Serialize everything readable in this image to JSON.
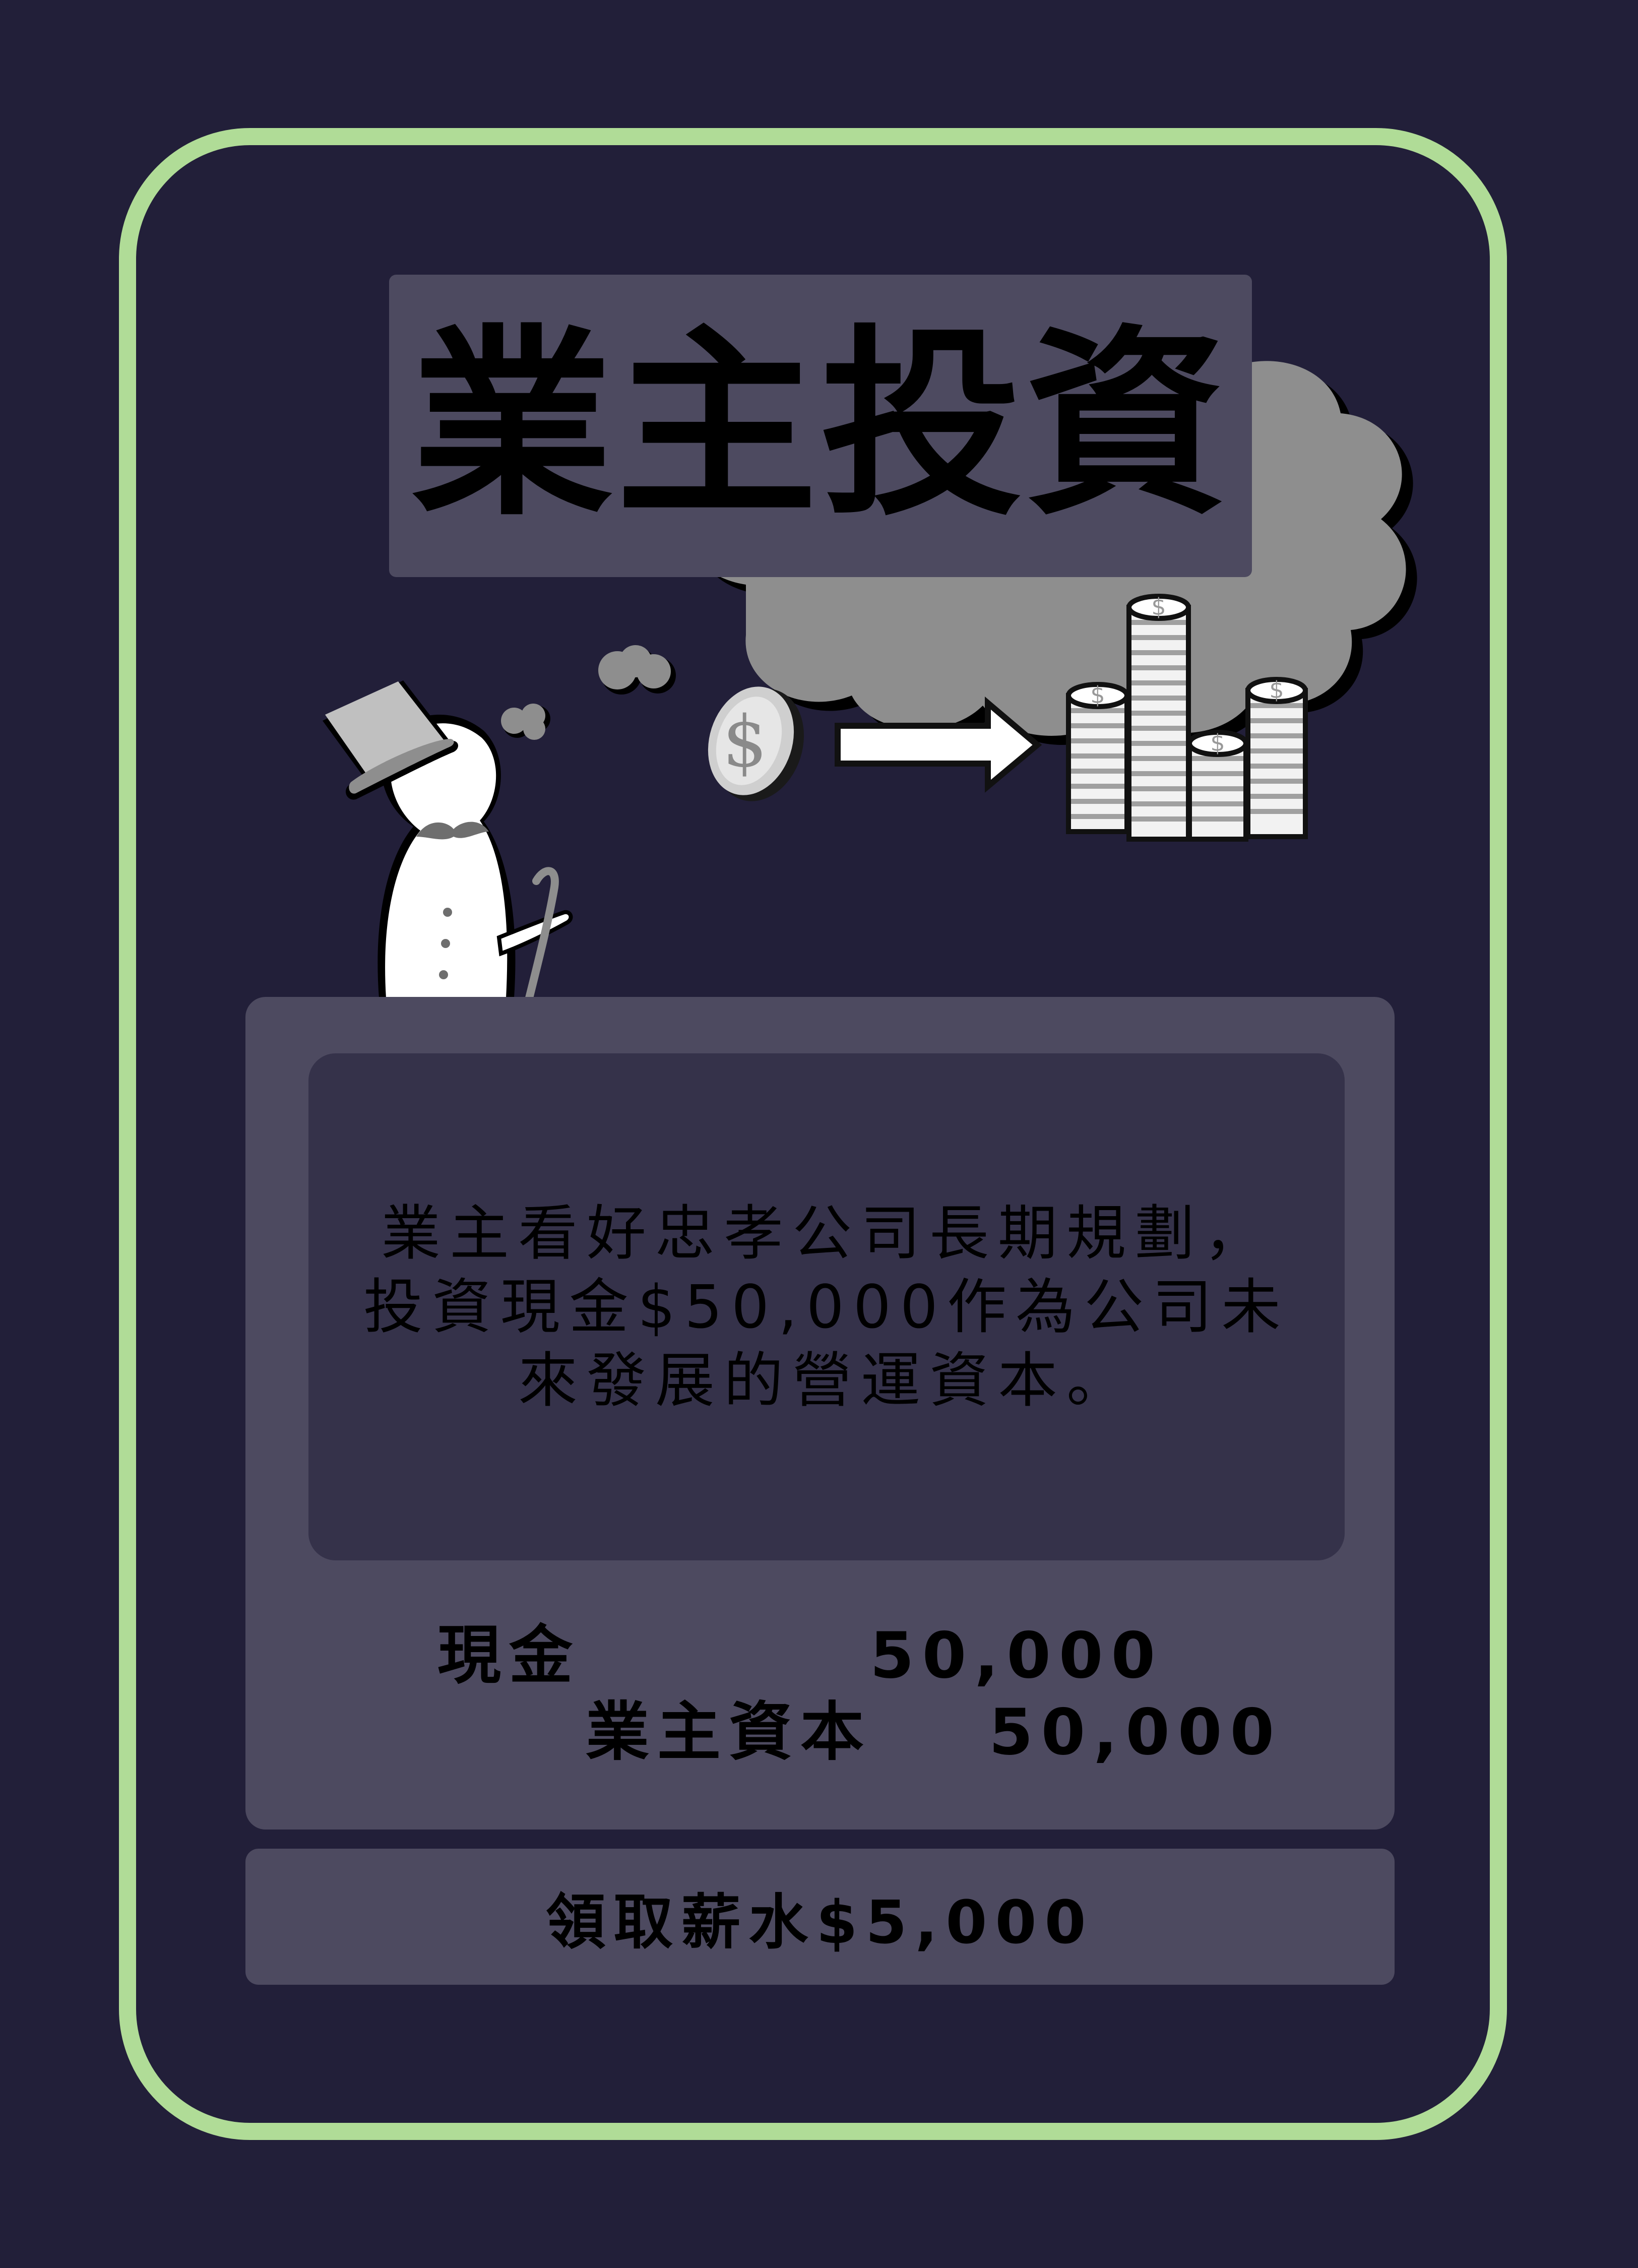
{
  "card": {
    "title": "業主投資",
    "description": "業主看好忠孝公司長期規劃，投資現金$50,000作為公司未來發展的營運資本。",
    "journal_entry": {
      "debit": {
        "account": "現金",
        "amount": "50,000"
      },
      "credit": {
        "account": "業主資本",
        "amount": "50,000"
      }
    },
    "salary_label": "領取薪水$5,000"
  },
  "colors": {
    "background": "#221f39",
    "border": "#b0dc97",
    "panel": "#4d4a60",
    "inner_panel": "#35324a"
  },
  "icons": [
    "top-hat-icon",
    "snowman-character-icon",
    "cane-icon",
    "thought-cloud-icon",
    "coin-icon",
    "arrow-right-icon",
    "coin-stacks-icon"
  ]
}
